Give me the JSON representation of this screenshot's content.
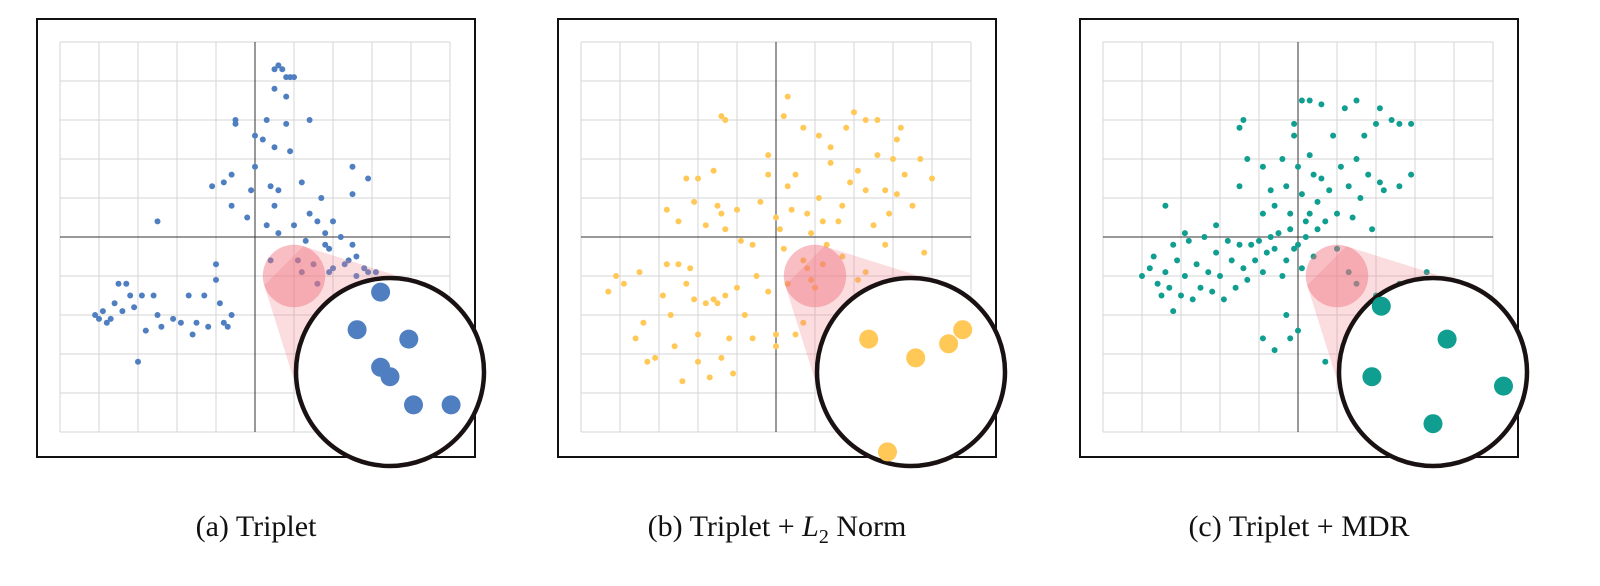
{
  "captions": [
    {
      "prefix": "(a) Triplet",
      "math": "",
      "sub": "",
      "suffix": ""
    },
    {
      "prefix": "(b) Triplet + ",
      "math": "L",
      "sub": "2",
      "suffix": " Norm"
    },
    {
      "prefix": "(c) Triplet + MDR",
      "math": "",
      "sub": "",
      "suffix": ""
    }
  ],
  "chart_data": [
    {
      "type": "scatter",
      "title": "(a) Triplet",
      "color": "#4f7fc0",
      "xlim": [
        -5,
        5
      ],
      "ylim": [
        -5,
        5
      ],
      "grid": true,
      "magnifier": {
        "center": [
          1,
          -1
        ],
        "radius": 0.8
      },
      "points": [
        [
          -4.1,
          -2.0
        ],
        [
          -4.0,
          -2.1
        ],
        [
          -3.9,
          -1.9
        ],
        [
          -3.8,
          -2.2
        ],
        [
          -3.7,
          -2.1
        ],
        [
          -3.6,
          -1.7
        ],
        [
          -3.5,
          -1.2
        ],
        [
          -3.4,
          -1.9
        ],
        [
          -3.3,
          -1.2
        ],
        [
          -3.2,
          -1.5
        ],
        [
          -3.1,
          -1.8
        ],
        [
          -3.0,
          -3.2
        ],
        [
          -2.9,
          -1.5
        ],
        [
          -2.8,
          -2.4
        ],
        [
          -2.6,
          -1.5
        ],
        [
          -2.5,
          -2.0
        ],
        [
          -2.4,
          -2.3
        ],
        [
          -2.5,
          0.4
        ],
        [
          -2.1,
          -2.1
        ],
        [
          -1.9,
          -2.2
        ],
        [
          -1.7,
          -1.5
        ],
        [
          -1.6,
          -2.5
        ],
        [
          -1.5,
          -2.2
        ],
        [
          -1.3,
          -1.5
        ],
        [
          -1.2,
          -2.3
        ],
        [
          -1.0,
          -0.7
        ],
        [
          -1.0,
          -1.1
        ],
        [
          -0.9,
          -1.7
        ],
        [
          -0.8,
          -2.2
        ],
        [
          -0.7,
          -2.3
        ],
        [
          -0.6,
          -2.0
        ],
        [
          -1.1,
          1.3
        ],
        [
          -0.8,
          1.4
        ],
        [
          -0.6,
          0.8
        ],
        [
          -0.6,
          1.6
        ],
        [
          -0.5,
          2.9
        ],
        [
          -0.5,
          3.0
        ],
        [
          -0.2,
          0.5
        ],
        [
          -0.1,
          1.2
        ],
        [
          0.0,
          1.8
        ],
        [
          0.0,
          2.6
        ],
        [
          0.2,
          2.5
        ],
        [
          0.3,
          0.3
        ],
        [
          0.4,
          1.3
        ],
        [
          0.4,
          -0.6
        ],
        [
          0.6,
          0.1
        ],
        [
          0.5,
          2.3
        ],
        [
          0.5,
          3.8
        ],
        [
          0.5,
          4.3
        ],
        [
          0.6,
          4.4
        ],
        [
          0.7,
          4.3
        ],
        [
          0.8,
          4.1
        ],
        [
          0.9,
          4.1
        ],
        [
          0.8,
          3.6
        ],
        [
          1.0,
          4.1
        ],
        [
          0.9,
          2.2
        ],
        [
          1.0,
          0.3
        ],
        [
          1.1,
          -0.6
        ],
        [
          1.2,
          -0.9
        ],
        [
          1.2,
          1.4
        ],
        [
          1.3,
          -0.1
        ],
        [
          1.4,
          0.6
        ],
        [
          1.5,
          -0.7
        ],
        [
          1.6,
          0.4
        ],
        [
          1.6,
          -1.2
        ],
        [
          1.7,
          1.0
        ],
        [
          1.8,
          0.1
        ],
        [
          1.8,
          -0.2
        ],
        [
          1.9,
          -0.3
        ],
        [
          1.9,
          -0.9
        ],
        [
          2.0,
          0.4
        ],
        [
          2.0,
          -0.8
        ],
        [
          2.2,
          0.0
        ],
        [
          2.3,
          -0.7
        ],
        [
          2.4,
          -0.6
        ],
        [
          2.5,
          -0.2
        ],
        [
          2.6,
          -1.0
        ],
        [
          2.6,
          -0.5
        ],
        [
          2.7,
          -1.2
        ],
        [
          2.8,
          -0.8
        ],
        [
          2.9,
          -0.9
        ],
        [
          3.1,
          -0.9
        ],
        [
          3.1,
          -1.1
        ],
        [
          3.2,
          -1.2
        ],
        [
          2.5,
          1.8
        ],
        [
          2.5,
          1.1
        ],
        [
          2.9,
          1.5
        ],
        [
          0.8,
          2.9
        ],
        [
          1.4,
          3.0
        ],
        [
          0.5,
          0.8
        ],
        [
          0.3,
          3.0
        ],
        [
          0.6,
          1.2
        ]
      ],
      "zoomed_points": [
        [
          -0.1,
          0.85
        ],
        [
          -0.35,
          0.45
        ],
        [
          0.2,
          0.35
        ],
        [
          -0.1,
          0.05
        ],
        [
          0.0,
          -0.05
        ],
        [
          0.25,
          -0.35
        ],
        [
          0.65,
          -0.35
        ]
      ]
    },
    {
      "type": "scatter",
      "title": "(b) Triplet + L2 Norm",
      "color": "#ffc857",
      "xlim": [
        -5,
        5
      ],
      "ylim": [
        -5,
        5
      ],
      "grid": true,
      "magnifier": {
        "center": [
          1,
          -1
        ],
        "radius": 0.8
      },
      "points": [
        [
          -4.3,
          -1.4
        ],
        [
          -4.1,
          -1.0
        ],
        [
          -3.9,
          -1.2
        ],
        [
          -3.6,
          -2.6
        ],
        [
          -3.5,
          -0.9
        ],
        [
          -3.4,
          -2.2
        ],
        [
          -3.3,
          -3.2
        ],
        [
          -3.1,
          -3.1
        ],
        [
          -2.9,
          -1.5
        ],
        [
          -2.8,
          -0.7
        ],
        [
          -2.7,
          -2.0
        ],
        [
          -2.6,
          -2.8
        ],
        [
          -2.5,
          -0.7
        ],
        [
          -2.4,
          -3.7
        ],
        [
          -2.3,
          -1.2
        ],
        [
          -2.2,
          -0.8
        ],
        [
          -2.1,
          -1.6
        ],
        [
          -2.0,
          -3.2
        ],
        [
          -2.0,
          -2.5
        ],
        [
          -1.8,
          -1.7
        ],
        [
          -1.7,
          -3.6
        ],
        [
          -1.6,
          -1.6
        ],
        [
          -1.5,
          -1.7
        ],
        [
          -1.4,
          -3.1
        ],
        [
          -1.3,
          -1.5
        ],
        [
          -1.2,
          -2.6
        ],
        [
          -1.1,
          -3.5
        ],
        [
          -1.0,
          -1.3
        ],
        [
          -0.8,
          -2.0
        ],
        [
          -0.6,
          -2.6
        ],
        [
          -0.5,
          -1.0
        ],
        [
          -0.2,
          -1.4
        ],
        [
          0.0,
          -2.8
        ],
        [
          0.0,
          -2.5
        ],
        [
          0.3,
          -1.2
        ],
        [
          0.5,
          -2.5
        ],
        [
          0.7,
          -2.2
        ],
        [
          0.9,
          -1.1
        ],
        [
          -2.8,
          0.7
        ],
        [
          -2.5,
          0.4
        ],
        [
          -2.3,
          1.5
        ],
        [
          -2.1,
          0.9
        ],
        [
          -2.0,
          1.5
        ],
        [
          -1.8,
          0.3
        ],
        [
          -1.6,
          1.7
        ],
        [
          -1.5,
          0.8
        ],
        [
          -1.4,
          0.6
        ],
        [
          -1.3,
          0.2
        ],
        [
          -1.0,
          0.7
        ],
        [
          -0.9,
          -0.1
        ],
        [
          -0.6,
          -0.2
        ],
        [
          -0.4,
          0.9
        ],
        [
          -0.2,
          1.6
        ],
        [
          0.0,
          0.5
        ],
        [
          0.1,
          0.2
        ],
        [
          0.2,
          -0.3
        ],
        [
          0.3,
          1.3
        ],
        [
          0.4,
          0.7
        ],
        [
          0.5,
          1.6
        ],
        [
          0.7,
          -0.6
        ],
        [
          0.8,
          0.6
        ],
        [
          0.9,
          0.1
        ],
        [
          1.1,
          1.0
        ],
        [
          1.2,
          0.4
        ],
        [
          1.3,
          -0.2
        ],
        [
          1.4,
          1.9
        ],
        [
          1.6,
          0.4
        ],
        [
          1.7,
          0.8
        ],
        [
          1.9,
          1.4
        ],
        [
          2.1,
          1.7
        ],
        [
          2.3,
          1.2
        ],
        [
          2.5,
          0.3
        ],
        [
          2.6,
          2.1
        ],
        [
          2.8,
          -0.2
        ],
        [
          2.9,
          0.6
        ],
        [
          3.1,
          1.1
        ],
        [
          3.3,
          1.6
        ],
        [
          3.5,
          0.8
        ],
        [
          3.7,
          2.0
        ],
        [
          3.8,
          -0.4
        ],
        [
          4.0,
          1.5
        ],
        [
          -1.4,
          3.1
        ],
        [
          -1.3,
          3.0
        ],
        [
          -0.2,
          2.1
        ],
        [
          0.2,
          3.1
        ],
        [
          0.3,
          3.6
        ],
        [
          0.7,
          2.8
        ],
        [
          1.1,
          2.6
        ],
        [
          1.4,
          2.3
        ],
        [
          1.8,
          2.8
        ],
        [
          2.0,
          3.2
        ],
        [
          2.3,
          3.0
        ],
        [
          2.6,
          3.0
        ],
        [
          3.1,
          2.5
        ],
        [
          3.2,
          2.8
        ],
        [
          3.0,
          2.0
        ],
        [
          2.8,
          1.2
        ],
        [
          2.1,
          -1.1
        ],
        [
          1.7,
          -0.5
        ],
        [
          0.8,
          -0.8
        ],
        [
          1.2,
          -0.7
        ],
        [
          1.0,
          -1.3
        ],
        [
          2.3,
          -0.9
        ]
      ],
      "zoomed_points": [
        [
          -0.45,
          0.35
        ],
        [
          0.05,
          0.15
        ],
        [
          0.4,
          0.3
        ],
        [
          0.55,
          0.45
        ],
        [
          -0.25,
          -0.85
        ]
      ]
    },
    {
      "type": "scatter",
      "title": "(c) Triplet + MDR",
      "color": "#0f9e8f",
      "xlim": [
        -5,
        5
      ],
      "ylim": [
        -5,
        5
      ],
      "grid": true,
      "magnifier": {
        "center": [
          1,
          -1
        ],
        "radius": 0.8
      },
      "points": [
        [
          -4.0,
          -1.0
        ],
        [
          -3.8,
          -0.8
        ],
        [
          -3.7,
          -0.5
        ],
        [
          -3.6,
          -1.2
        ],
        [
          -3.5,
          -1.5
        ],
        [
          -3.4,
          -0.9
        ],
        [
          -3.3,
          -1.3
        ],
        [
          -3.2,
          -0.2
        ],
        [
          -3.2,
          -1.9
        ],
        [
          -3.1,
          -0.6
        ],
        [
          -3.0,
          -1.5
        ],
        [
          -2.9,
          -1.0
        ],
        [
          -2.8,
          -0.1
        ],
        [
          -2.7,
          -1.6
        ],
        [
          -2.6,
          -0.7
        ],
        [
          -2.5,
          -1.3
        ],
        [
          -2.4,
          0.0
        ],
        [
          -2.3,
          -0.9
        ],
        [
          -2.2,
          -1.4
        ],
        [
          -2.1,
          -0.4
        ],
        [
          -2.0,
          -1.0
        ],
        [
          -1.9,
          -1.6
        ],
        [
          -1.8,
          -0.1
        ],
        [
          -1.7,
          -0.6
        ],
        [
          -1.6,
          -1.3
        ],
        [
          -1.5,
          -0.2
        ],
        [
          -1.4,
          -0.8
        ],
        [
          -1.3,
          -1.1
        ],
        [
          -1.2,
          -0.2
        ],
        [
          -1.1,
          -0.6
        ],
        [
          -1.0,
          -0.1
        ],
        [
          -0.9,
          -0.9
        ],
        [
          -0.8,
          -0.4
        ],
        [
          -0.7,
          0.0
        ],
        [
          -0.6,
          -0.3
        ],
        [
          -0.5,
          0.1
        ],
        [
          -0.4,
          -1.0
        ],
        [
          -0.3,
          -0.6
        ],
        [
          -0.2,
          0.2
        ],
        [
          -0.1,
          -0.3
        ],
        [
          0.0,
          -0.2
        ],
        [
          0.1,
          -0.8
        ],
        [
          0.2,
          0.0
        ],
        [
          0.3,
          0.6
        ],
        [
          0.4,
          -0.5
        ],
        [
          0.5,
          0.2
        ],
        [
          -3.4,
          0.8
        ],
        [
          -2.9,
          0.1
        ],
        [
          -2.1,
          0.3
        ],
        [
          -1.5,
          1.3
        ],
        [
          -1.3,
          2.0
        ],
        [
          -0.9,
          0.6
        ],
        [
          -0.9,
          1.8
        ],
        [
          -0.7,
          1.2
        ],
        [
          -0.6,
          0.8
        ],
        [
          -0.4,
          2.0
        ],
        [
          -0.3,
          1.3
        ],
        [
          -0.2,
          0.6
        ],
        [
          0.0,
          1.8
        ],
        [
          0.1,
          1.1
        ],
        [
          0.2,
          0.4
        ],
        [
          0.3,
          2.1
        ],
        [
          0.4,
          1.6
        ],
        [
          0.5,
          0.9
        ],
        [
          0.6,
          1.5
        ],
        [
          0.7,
          0.4
        ],
        [
          0.8,
          1.2
        ],
        [
          0.9,
          2.6
        ],
        [
          1.0,
          0.6
        ],
        [
          1.1,
          1.8
        ],
        [
          1.2,
          3.3
        ],
        [
          1.3,
          1.3
        ],
        [
          1.4,
          0.5
        ],
        [
          1.5,
          2.0
        ],
        [
          1.6,
          1.0
        ],
        [
          1.7,
          2.6
        ],
        [
          1.8,
          1.6
        ],
        [
          1.9,
          0.2
        ],
        [
          2.0,
          2.9
        ],
        [
          2.1,
          1.4
        ],
        [
          2.2,
          1.2
        ],
        [
          2.4,
          3.0
        ],
        [
          2.6,
          1.3
        ],
        [
          2.9,
          1.6
        ],
        [
          -1.5,
          2.8
        ],
        [
          -1.4,
          3.0
        ],
        [
          -0.1,
          2.9
        ],
        [
          0.1,
          3.5
        ],
        [
          0.3,
          3.5
        ],
        [
          0.6,
          3.4
        ],
        [
          1.5,
          3.5
        ],
        [
          2.1,
          3.3
        ],
        [
          2.6,
          2.9
        ],
        [
          2.9,
          2.9
        ],
        [
          -0.1,
          2.6
        ],
        [
          1.0,
          -0.3
        ],
        [
          1.3,
          -0.9
        ],
        [
          1.5,
          -1.2
        ],
        [
          1.8,
          -1.9
        ],
        [
          2.0,
          -1.5
        ],
        [
          2.3,
          -1.8
        ],
        [
          2.6,
          -1.2
        ],
        [
          3.0,
          -1.6
        ],
        [
          3.3,
          -0.9
        ],
        [
          3.6,
          -1.3
        ],
        [
          3.8,
          -1.5
        ],
        [
          -0.9,
          -2.6
        ],
        [
          -0.6,
          -2.9
        ],
        [
          -0.2,
          -2.6
        ],
        [
          0.0,
          -2.4
        ],
        [
          1.4,
          -2.7
        ],
        [
          1.6,
          -2.2
        ],
        [
          0.7,
          -3.2
        ],
        [
          -0.3,
          -2.0
        ]
      ],
      "zoomed_points": [
        [
          -0.55,
          0.7
        ],
        [
          0.15,
          0.35
        ],
        [
          -0.65,
          -0.05
        ],
        [
          0.75,
          -0.15
        ],
        [
          0.0,
          -0.55
        ]
      ]
    }
  ]
}
